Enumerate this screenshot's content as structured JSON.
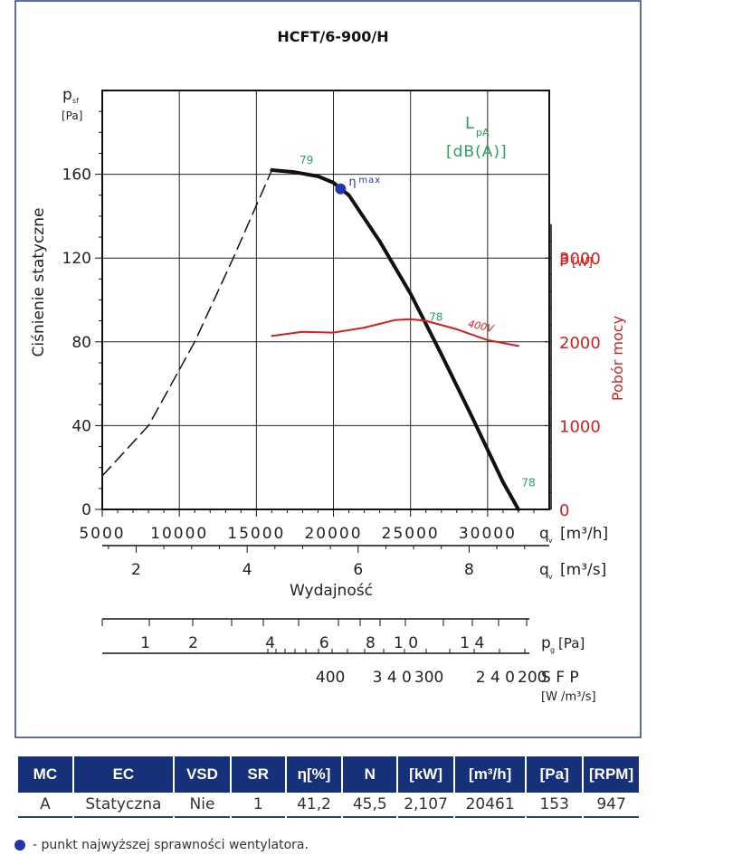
{
  "chart_data": {
    "type": "line",
    "title": "HCFT/6-900/H",
    "ylabel": "Ciśnienie statyczne",
    "y_axis_symbol": "p",
    "y_axis_subscript": "sf",
    "y_axis_unit": "[Pa]",
    "ylim": [
      0,
      200
    ],
    "yticks": [
      0,
      40,
      80,
      120,
      160
    ],
    "xlim": [
      5000,
      34000
    ],
    "xticks": [
      5000,
      10000,
      15000,
      20000,
      25000,
      30000
    ],
    "x_unit_symbol": "q",
    "x_unit_sub": "v",
    "x_unit": "[m³/h]",
    "x2_ticks": [
      2,
      4,
      6,
      8
    ],
    "x2_unit": "[m³/s]",
    "xlabel": "Wydajność",
    "y2label": "Pobór mocy",
    "y2_symbol": "P",
    "y2_unit": "[W]",
    "y2lim": [
      0,
      5000
    ],
    "y2ticks": [
      0,
      1000,
      2000,
      3000
    ],
    "lpa_label": "L",
    "lpa_sub": "pA",
    "lpa_unit": "[dB(A)]",
    "grid": true,
    "series": [
      {
        "name": "dashed",
        "style": "dashed",
        "color": "#111111",
        "x": [
          5000,
          8000,
          11000,
          13500,
          16000
        ],
        "y": [
          16,
          40,
          80,
          120,
          162
        ]
      },
      {
        "name": "fan-curve",
        "style": "solid",
        "color": "#111111",
        "x": [
          16000,
          17500,
          19000,
          20000,
          21000,
          23000,
          25000,
          27000,
          29000,
          31000,
          32000
        ],
        "y": [
          162,
          161,
          159,
          156,
          150,
          128,
          103,
          74,
          44,
          13,
          0
        ]
      },
      {
        "name": "400V",
        "style": "solid",
        "color": "#d61e1e",
        "axis": "y2",
        "x": [
          16000,
          18000,
          20000,
          22000,
          24000,
          25000,
          26000,
          28000,
          30000,
          32000
        ],
        "y": [
          2070,
          2120,
          2110,
          2170,
          2260,
          2270,
          2250,
          2150,
          2020,
          1950
        ]
      }
    ],
    "annotations": [
      {
        "text": "79",
        "x": 17800,
        "y": 165,
        "color": "#2aa35a"
      },
      {
        "text": "78",
        "x": 26200,
        "y": 90,
        "color": "#2aa35a"
      },
      {
        "text": "78",
        "x": 32200,
        "y": 11,
        "color": "#2aa35a"
      }
    ],
    "eta_point": {
      "x": 20461,
      "y": 153,
      "label": "η",
      "sub": "max"
    },
    "sfp_axes": {
      "pg_unit": "[Pa]",
      "pg_symbol": "p",
      "pg_sub": "g",
      "pg_labels": [
        {
          "text": "1",
          "x": 7800
        },
        {
          "text": "2",
          "x": 10900
        },
        {
          "text": "4",
          "x": 15900
        },
        {
          "text": "6",
          "x": 19400
        },
        {
          "text": "8",
          "x": 22400
        },
        {
          "text": "1 0",
          "x": 24700
        },
        {
          "text": "1 4",
          "x": 29000
        }
      ],
      "sfp_label": "S F P",
      "sfp_unit": "[W /m³/s]",
      "sfp_labels": [
        {
          "text": "400",
          "x": 19800
        },
        {
          "text": "3 4 0",
          "x": 23800
        },
        {
          "text": "300",
          "x": 26200
        },
        {
          "text": "2 4 0",
          "x": 30500
        },
        {
          "text": "200",
          "x": 32900
        }
      ]
    }
  },
  "table": {
    "headers": [
      "MC",
      "EC",
      "VSD",
      "SR",
      "η[%]",
      "N",
      "[kW]",
      "[m³/h]",
      "[Pa]",
      "[RPM]"
    ],
    "row": [
      "A",
      "Statyczna",
      "Nie",
      "1",
      "41,2",
      "45,5",
      "2,107",
      "20461",
      "153",
      "947"
    ]
  },
  "legend_text": "- punkt najwyższej sprawności wentylatora.",
  "colors": {
    "accent": "#17307a",
    "power": "#d61e1e",
    "noise": "#2aa35a",
    "point": "#2436a8"
  }
}
